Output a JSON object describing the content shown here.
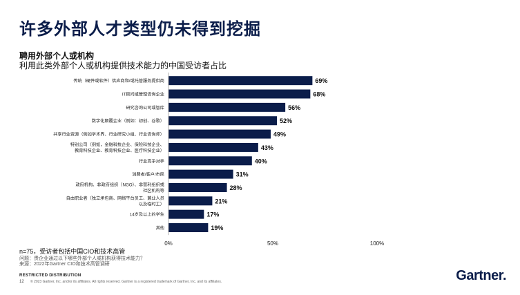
{
  "header": {
    "title": "许多外部人才类型仍未得到挖掘",
    "subtitle": "聘用外部个人或机构",
    "description": "利用此类外部个人或机构提供技术能力的中国受访者占比"
  },
  "chart_data": {
    "type": "bar",
    "orientation": "horizontal",
    "categories": [
      [
        "传统（硬件或软件）供应商和/或托管服务提供商"
      ],
      [
        "IT顾问或管理咨询企业"
      ],
      [
        "研究咨询公司或智库"
      ],
      [
        "数字化颠覆企业（例如：初创、谷歌）"
      ],
      [
        "共享行业资源（例如学术界、行业研究小组、行业咨询师）"
      ],
      [
        "特别公司（例如，金融科技企业、保险科技企业、",
        "教育科技企业、教育科技企业、医疗科技企业）"
      ],
      [
        "行业竞争对手"
      ],
      [
        "消费者/客户/市民"
      ],
      [
        "政府机构、非政府组织（NGO）、非营利组织或",
        "社区机构等"
      ],
      [
        "自由职业者（独立承包商、网络平台员工、兼业人员",
        "以及临时工）"
      ],
      [
        "14岁及以上的学生"
      ],
      [
        "其他"
      ]
    ],
    "values": [
      69,
      68,
      56,
      52,
      49,
      43,
      40,
      31,
      28,
      21,
      17,
      19
    ],
    "value_labels": [
      "69%",
      "68%",
      "56%",
      "52%",
      "49%",
      "43%",
      "40%",
      "31%",
      "28%",
      "21%",
      "17%",
      "19%"
    ],
    "xlim": [
      0,
      100
    ],
    "xticks": [
      0,
      50,
      100
    ],
    "xtick_labels": [
      "0%",
      "50%",
      "100%"
    ],
    "bar_color": "#0b1d4a",
    "grid": false,
    "legend": "none"
  },
  "footer": {
    "note": "n=75，受访者包括中国CIO和技术高管",
    "question": "问题：贵企业通过以下哪些外部个人或机构获得技术能力？",
    "source": "来源：2022年Gartner CIO和技术高管调研",
    "restricted": "RESTRICTED DISTRIBUTION",
    "page_number": "12",
    "copyright": "© 2023 Gartner, Inc. and/or its affiliates. All rights reserved. Gartner is a registered trademark of Gartner, Inc. and its affiliates.",
    "logo_text": "Gartner."
  }
}
